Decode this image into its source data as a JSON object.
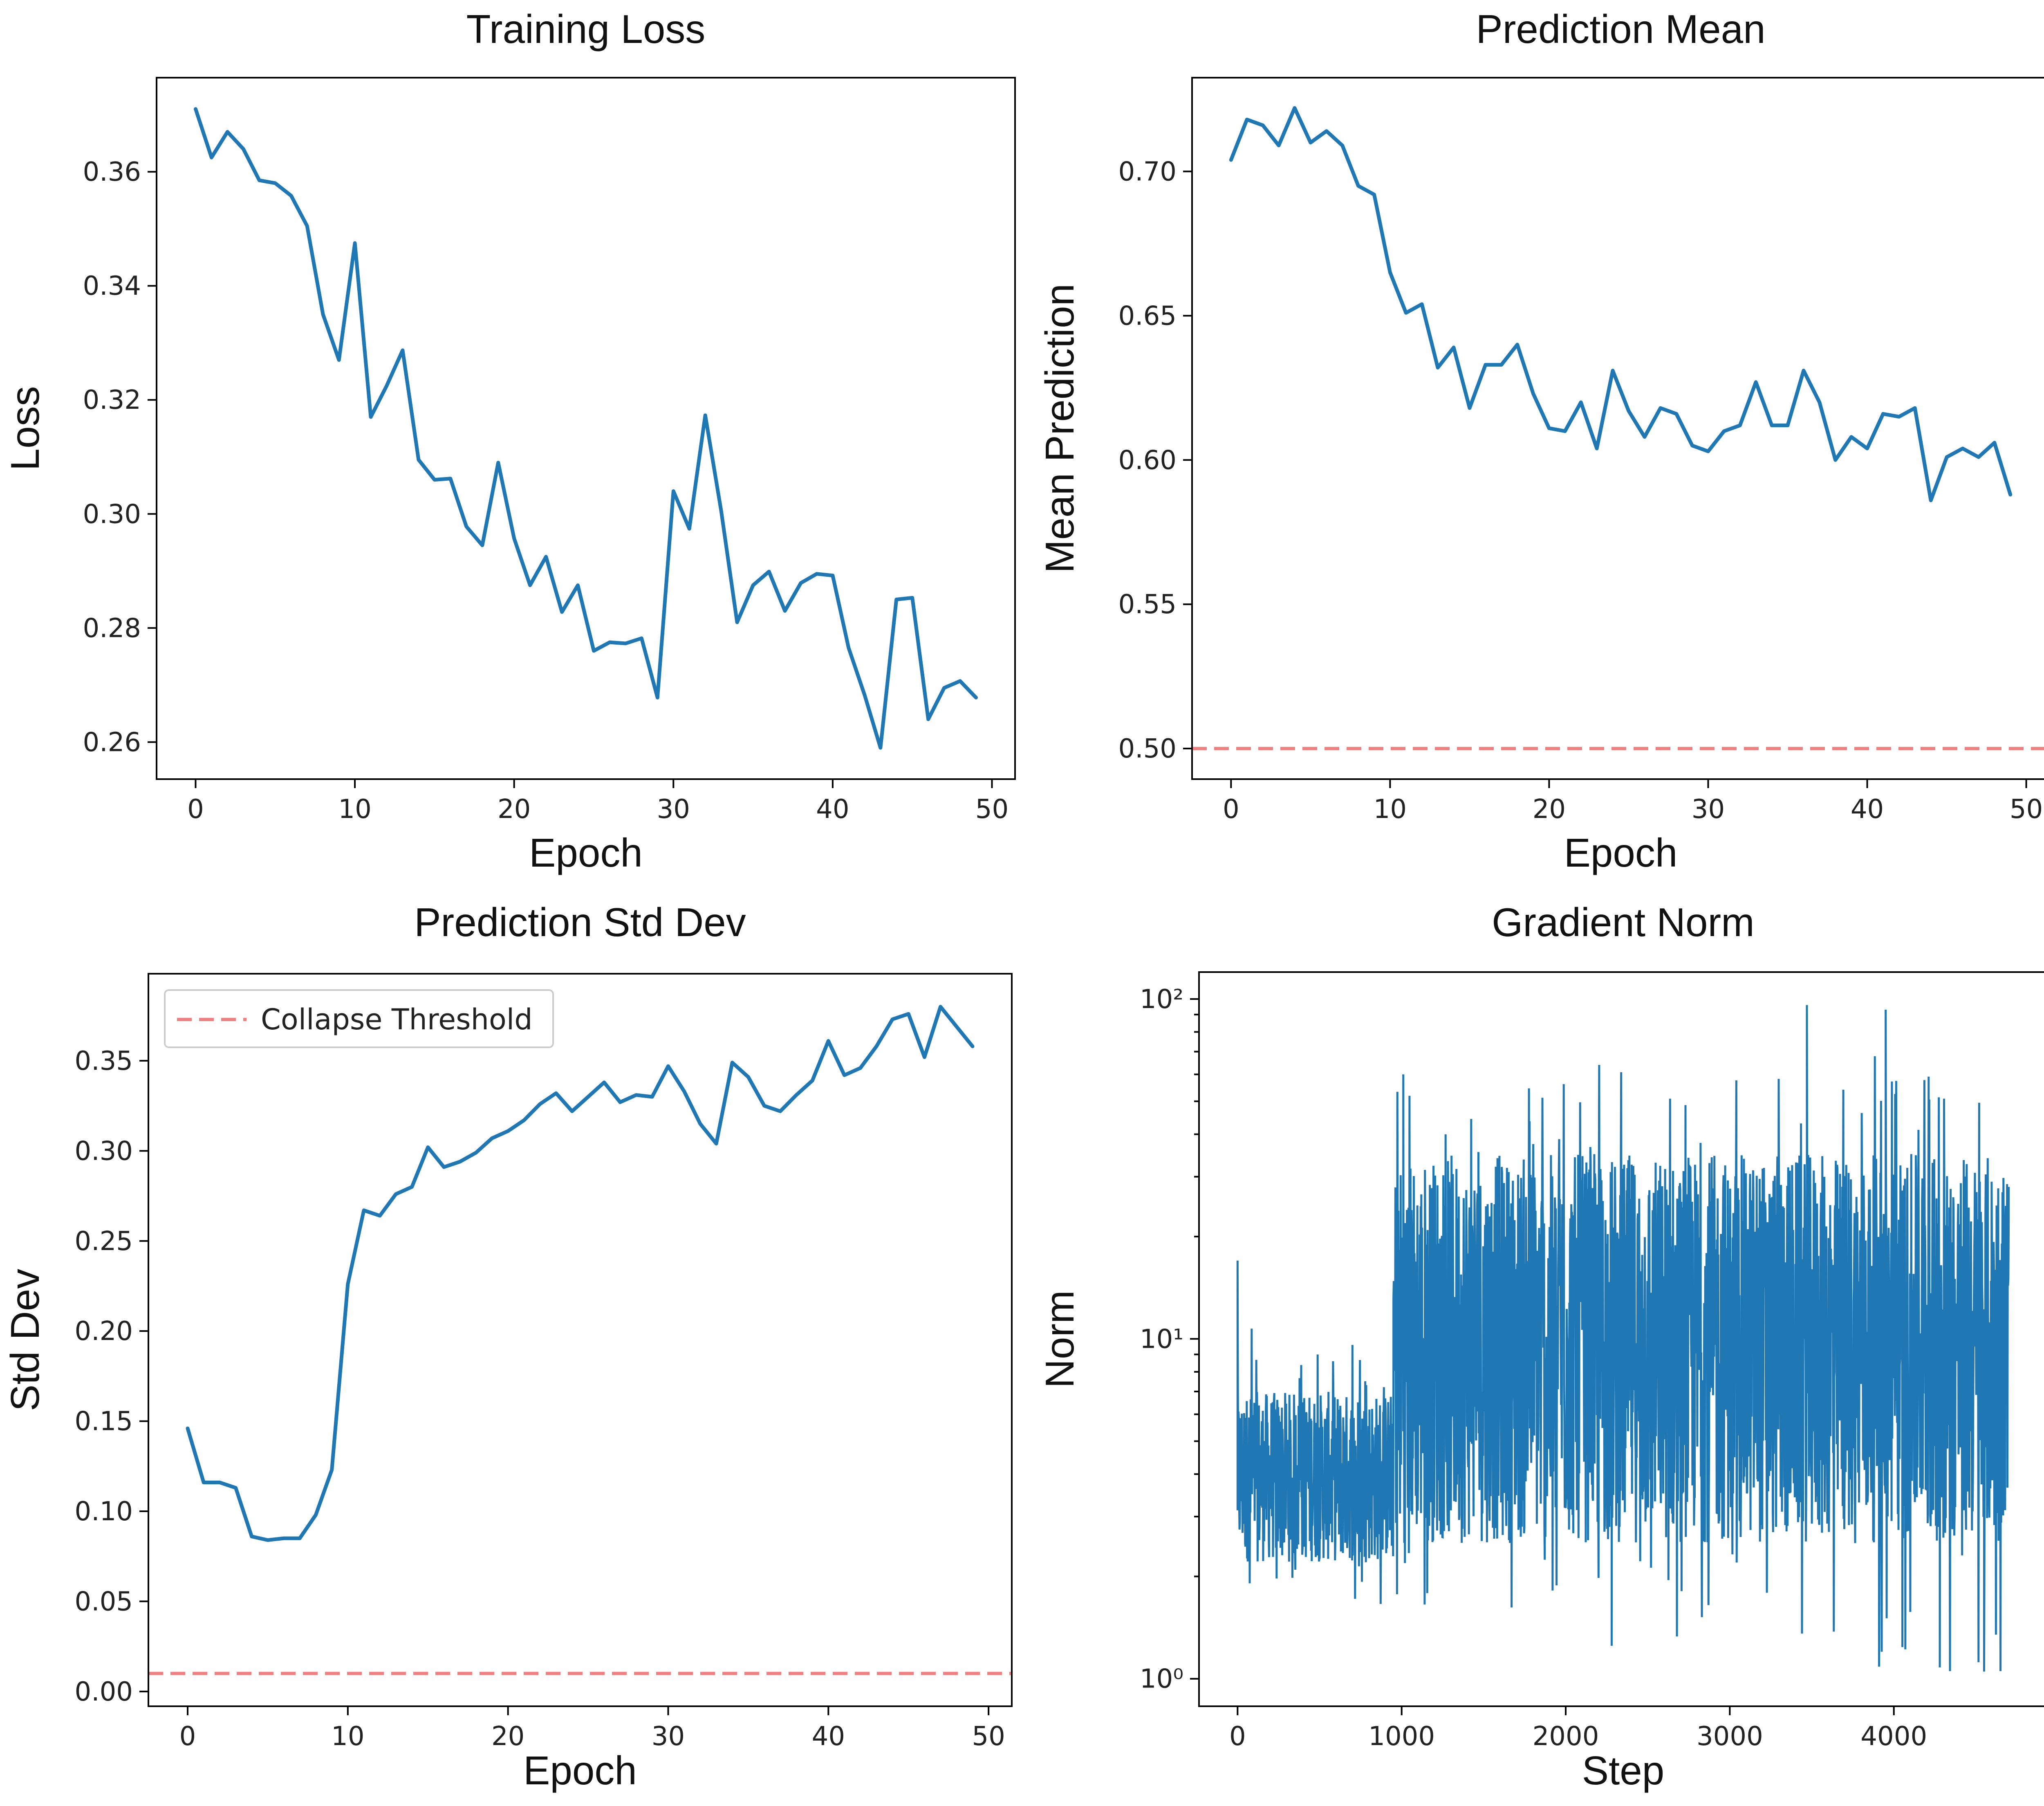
{
  "chart_data": [
    {
      "id": "loss",
      "type": "line",
      "title": "Training Loss",
      "xlabel": "Epoch",
      "ylabel": "Loss",
      "xlim": [
        -2.45,
        51.45
      ],
      "ylim": [
        0.2535,
        0.3765
      ],
      "xticks": [
        0,
        10,
        20,
        30,
        40,
        50
      ],
      "xtick_labels": [
        "0",
        "10",
        "20",
        "30",
        "40",
        "50"
      ],
      "yticks": [
        0.26,
        0.28,
        0.3,
        0.32,
        0.34,
        0.36
      ],
      "ytick_labels": [
        "0.26",
        "0.28",
        "0.30",
        "0.32",
        "0.34",
        "0.36"
      ],
      "series": [
        {
          "color": "#1f77b4",
          "x": [
            0,
            1,
            2,
            3,
            4,
            5,
            6,
            7,
            8,
            9,
            10,
            11,
            12,
            13,
            14,
            15,
            16,
            17,
            18,
            19,
            20,
            21,
            22,
            23,
            24,
            25,
            26,
            27,
            28,
            29,
            30,
            31,
            32,
            33,
            34,
            35,
            36,
            37,
            38,
            39,
            40,
            41,
            42,
            43,
            44,
            45,
            46,
            47,
            48,
            49
          ],
          "y": [
            0.371,
            0.3625,
            0.367,
            0.364,
            0.3585,
            0.358,
            0.3558,
            0.3505,
            0.335,
            0.327,
            0.3475,
            0.317,
            0.3225,
            0.3287,
            0.3095,
            0.306,
            0.3062,
            0.2978,
            0.2945,
            0.309,
            0.2957,
            0.2875,
            0.2925,
            0.2828,
            0.2875,
            0.276,
            0.2775,
            0.2773,
            0.2782,
            0.2678,
            0.304,
            0.2974,
            0.3173,
            0.3005,
            0.281,
            0.2875,
            0.2899,
            0.283,
            0.2879,
            0.2895,
            0.2892,
            0.2765,
            0.2683,
            0.259,
            0.285,
            0.2853,
            0.264,
            0.2695,
            0.2707,
            0.2678
          ]
        }
      ],
      "grid": false
    },
    {
      "id": "mean",
      "type": "line",
      "title": "Prediction Mean",
      "xlabel": "Epoch",
      "ylabel": "Mean Prediction",
      "xlim": [
        -2.45,
        51.45
      ],
      "ylim": [
        0.4894,
        0.7325
      ],
      "xticks": [
        0,
        10,
        20,
        30,
        40,
        50
      ],
      "xtick_labels": [
        "0",
        "10",
        "20",
        "30",
        "40",
        "50"
      ],
      "yticks": [
        0.5,
        0.55,
        0.6,
        0.65,
        0.7
      ],
      "ytick_labels": [
        "0.50",
        "0.55",
        "0.60",
        "0.65",
        "0.70"
      ],
      "series": [
        {
          "color": "#1f77b4",
          "x": [
            0,
            1,
            2,
            3,
            4,
            5,
            6,
            7,
            8,
            9,
            10,
            11,
            12,
            13,
            14,
            15,
            16,
            17,
            18,
            19,
            20,
            21,
            22,
            23,
            24,
            25,
            26,
            27,
            28,
            29,
            30,
            31,
            32,
            33,
            34,
            35,
            36,
            37,
            38,
            39,
            40,
            41,
            42,
            43,
            44,
            45,
            46,
            47,
            48,
            49
          ],
          "y": [
            0.704,
            0.718,
            0.716,
            0.709,
            0.722,
            0.71,
            0.714,
            0.709,
            0.695,
            0.692,
            0.665,
            0.651,
            0.654,
            0.632,
            0.639,
            0.618,
            0.633,
            0.633,
            0.64,
            0.623,
            0.611,
            0.61,
            0.62,
            0.604,
            0.631,
            0.617,
            0.608,
            0.618,
            0.616,
            0.605,
            0.603,
            0.61,
            0.612,
            0.627,
            0.612,
            0.612,
            0.631,
            0.62,
            0.6,
            0.608,
            0.604,
            0.616,
            0.615,
            0.618,
            0.586,
            0.601,
            0.604,
            0.601,
            0.606,
            0.588
          ]
        }
      ],
      "reference_lines": [
        {
          "y": 0.5,
          "style": "dashed",
          "color": "#f08080"
        }
      ],
      "grid": false
    },
    {
      "id": "std",
      "type": "line",
      "title": "Prediction Std Dev",
      "xlabel": "Epoch",
      "ylabel": "Std Dev",
      "xlim": [
        -2.45,
        51.45
      ],
      "ylim": [
        -0.0082,
        0.3983
      ],
      "xticks": [
        0,
        10,
        20,
        30,
        40,
        50
      ],
      "xtick_labels": [
        "0",
        "10",
        "20",
        "30",
        "40",
        "50"
      ],
      "yticks": [
        0.0,
        0.05,
        0.1,
        0.15,
        0.2,
        0.25,
        0.3,
        0.35
      ],
      "ytick_labels": [
        "0.00",
        "0.05",
        "0.10",
        "0.15",
        "0.20",
        "0.25",
        "0.30",
        "0.35"
      ],
      "series": [
        {
          "color": "#1f77b4",
          "x": [
            0,
            1,
            2,
            3,
            4,
            5,
            6,
            7,
            8,
            9,
            10,
            11,
            12,
            13,
            14,
            15,
            16,
            17,
            18,
            19,
            20,
            21,
            22,
            23,
            24,
            25,
            26,
            27,
            28,
            29,
            30,
            31,
            32,
            33,
            34,
            35,
            36,
            37,
            38,
            39,
            40,
            41,
            42,
            43,
            44,
            45,
            46,
            47,
            48,
            49
          ],
          "y": [
            0.146,
            0.116,
            0.116,
            0.113,
            0.086,
            0.084,
            0.085,
            0.085,
            0.098,
            0.123,
            0.226,
            0.267,
            0.264,
            0.276,
            0.28,
            0.302,
            0.291,
            0.294,
            0.299,
            0.307,
            0.311,
            0.317,
            0.326,
            0.332,
            0.322,
            0.33,
            0.338,
            0.327,
            0.331,
            0.33,
            0.347,
            0.333,
            0.315,
            0.304,
            0.349,
            0.341,
            0.325,
            0.322,
            0.331,
            0.339,
            0.361,
            0.342,
            0.346,
            0.358,
            0.373,
            0.376,
            0.352,
            0.38,
            0.369,
            0.358
          ]
        }
      ],
      "reference_lines": [
        {
          "y": 0.01,
          "style": "dashed",
          "color": "#f08080",
          "label": "Collapse Threshold"
        }
      ],
      "legend": {
        "placement": "top-left",
        "entries": [
          "Collapse Threshold"
        ]
      },
      "grid": false
    },
    {
      "id": "grad",
      "type": "line",
      "title": "Gradient Norm",
      "xlabel": "Step",
      "ylabel": "Norm",
      "xscale": "linear",
      "yscale": "log",
      "xlim": [
        -235,
        4935
      ],
      "ylim": [
        0.83,
        120
      ],
      "xticks": [
        0,
        1000,
        2000,
        3000,
        4000
      ],
      "xtick_labels": [
        "0",
        "1000",
        "2000",
        "3000",
        "4000"
      ],
      "yticks": [
        1,
        10,
        100
      ],
      "ytick_labels": [
        "10⁰",
        "10¹",
        "10²"
      ],
      "series": [
        {
          "color": "#1f77b4",
          "description_of_envelope": "dense noisy signal",
          "segments": [
            {
              "x_start": 0,
              "x_end": 950,
              "y_low": 1.6,
              "y_high": 17,
              "typical_low": 2.2,
              "typical_high": 7
            },
            {
              "x_start": 950,
              "x_end": 4700,
              "y_low": 1.05,
              "y_high": 96,
              "typical_low": 2.5,
              "typical_high": 35
            }
          ],
          "notable_points": [
            {
              "x": 0,
              "y": 17
            },
            {
              "x": 1010,
              "y": 60
            },
            {
              "x": 2280,
              "y": 1.25
            },
            {
              "x": 3470,
              "y": 96
            },
            {
              "x": 3950,
              "y": 93
            },
            {
              "x": 4280,
              "y": 1.08
            },
            {
              "x": 4550,
              "y": 1.05
            },
            {
              "x": 4700,
              "y": 28
            }
          ]
        }
      ],
      "grid": false
    }
  ]
}
